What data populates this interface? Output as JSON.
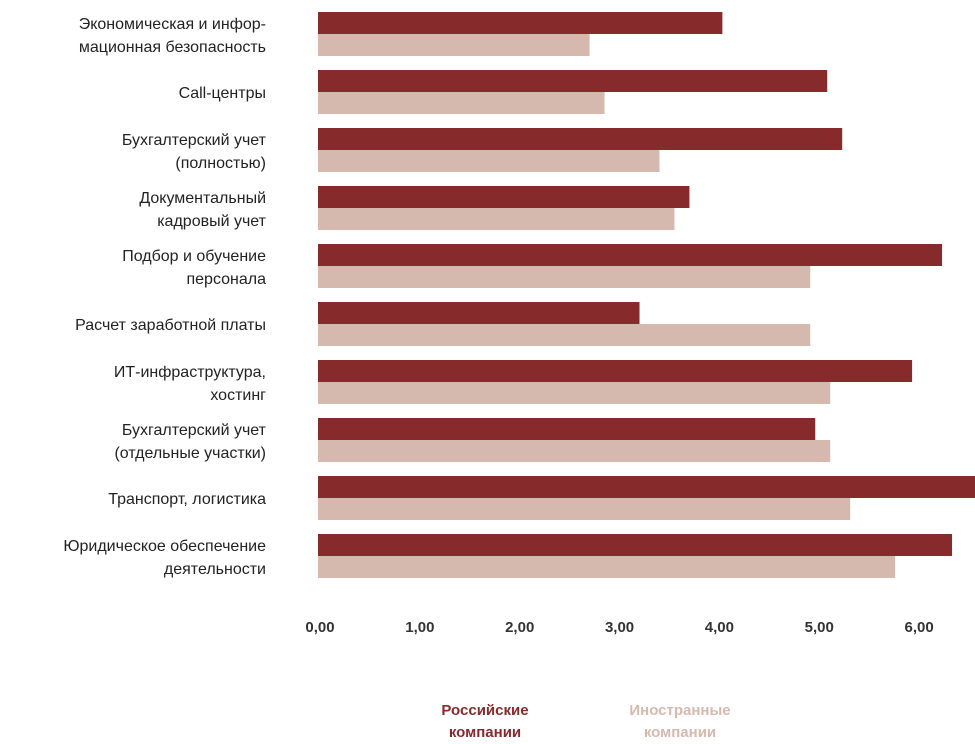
{
  "chart_data": {
    "type": "bar",
    "orientation": "horizontal",
    "categories": [
      [
        "Экономическая и инфор-",
        "мационная безопасность"
      ],
      [
        "Call-центры"
      ],
      [
        "Бухгалтерский учет",
        "(полностью)"
      ],
      [
        "Документальный",
        "кадровый учет"
      ],
      [
        "Подбор и обучение",
        "персонала"
      ],
      [
        "Расчет заработной платы"
      ],
      [
        "ИТ-инфраструктура,",
        "хостинг"
      ],
      [
        "Бухгалтерский учет",
        "(отдельные участки)"
      ],
      [
        "Транспорт, логистика"
      ],
      [
        "Юридическое обеспечение",
        "деятельности"
      ]
    ],
    "series": [
      {
        "name": "Российские компании",
        "color": "#862a2c",
        "values": [
          4.05,
          5.1,
          5.25,
          3.72,
          6.25,
          3.22,
          5.95,
          4.98,
          6.6,
          6.35
        ]
      },
      {
        "name": "Иностранные компании",
        "color": "#d6b9ae",
        "values": [
          2.72,
          2.87,
          3.42,
          3.57,
          4.93,
          4.93,
          5.13,
          5.13,
          5.33,
          5.78
        ]
      }
    ],
    "xticks": [
      "0,00",
      "1,00",
      "2,00",
      "3,00",
      "4,00",
      "5,00",
      "6,00"
    ],
    "xlim": [
      0,
      6.58
    ],
    "grid": false,
    "legend": "bottom"
  },
  "legend": {
    "ru_line1": "Российские",
    "ru_line2": "компании",
    "fr_line1": "Иностранные",
    "fr_line2": "компании",
    "ru_color": "#862a2c",
    "fr_color": "#d6b9ae"
  }
}
